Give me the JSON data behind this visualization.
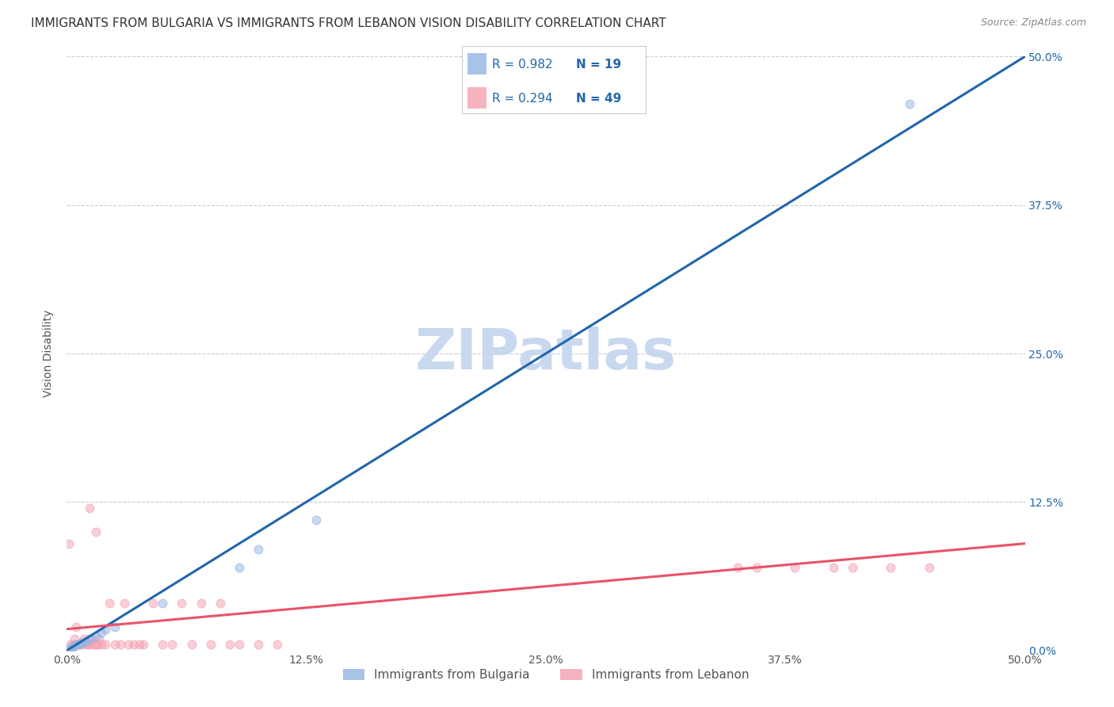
{
  "title": "IMMIGRANTS FROM BULGARIA VS IMMIGRANTS FROM LEBANON VISION DISABILITY CORRELATION CHART",
  "source": "Source: ZipAtlas.com",
  "ylabel": "Vision Disability",
  "xlabel": "",
  "xlim": [
    0.0,
    0.5
  ],
  "ylim": [
    0.0,
    0.5
  ],
  "xtick_labels": [
    "0.0%",
    "12.5%",
    "25.0%",
    "37.5%",
    "50.0%"
  ],
  "xtick_vals": [
    0.0,
    0.125,
    0.25,
    0.375,
    0.5
  ],
  "ytick_vals": [
    0.0,
    0.125,
    0.25,
    0.375,
    0.5
  ],
  "right_ytick_labels": [
    "50.0%",
    "37.5%",
    "25.0%",
    "12.5%",
    "0.0%"
  ],
  "right_ytick_vals": [
    0.5,
    0.375,
    0.25,
    0.125,
    0.0
  ],
  "watermark": "ZIPatlas",
  "bulgaria_color": "#92b4e3",
  "lebanon_color": "#f4a0b0",
  "bulgaria_line_color": "#2166ac",
  "lebanon_line_color": "#e8536a",
  "legend_R_bulgaria": "R = 0.982",
  "legend_N_bulgaria": "N = 19",
  "legend_R_lebanon": "R = 0.294",
  "legend_N_lebanon": "N = 49",
  "bulgaria_scatter_x": [
    0.001,
    0.002,
    0.003,
    0.004,
    0.005,
    0.006,
    0.007,
    0.008,
    0.01,
    0.012,
    0.015,
    0.018,
    0.02,
    0.025,
    0.05,
    0.09,
    0.1,
    0.13,
    0.44
  ],
  "bulgaria_scatter_y": [
    0.001,
    0.002,
    0.003,
    0.004,
    0.005,
    0.005,
    0.006,
    0.007,
    0.008,
    0.01,
    0.012,
    0.015,
    0.018,
    0.02,
    0.04,
    0.07,
    0.085,
    0.11,
    0.46
  ],
  "lebanon_scatter_x": [
    0.001,
    0.002,
    0.003,
    0.004,
    0.005,
    0.005,
    0.006,
    0.007,
    0.008,
    0.009,
    0.01,
    0.011,
    0.012,
    0.013,
    0.014,
    0.015,
    0.016,
    0.017,
    0.018,
    0.02,
    0.022,
    0.025,
    0.028,
    0.03,
    0.032,
    0.035,
    0.038,
    0.04,
    0.045,
    0.05,
    0.055,
    0.06,
    0.065,
    0.07,
    0.075,
    0.08,
    0.085,
    0.09,
    0.1,
    0.11,
    0.012,
    0.015,
    0.35,
    0.36,
    0.38,
    0.4,
    0.41,
    0.43,
    0.45
  ],
  "lebanon_scatter_y": [
    0.09,
    0.005,
    0.005,
    0.01,
    0.005,
    0.02,
    0.005,
    0.005,
    0.005,
    0.01,
    0.005,
    0.005,
    0.005,
    0.01,
    0.005,
    0.005,
    0.005,
    0.01,
    0.005,
    0.005,
    0.04,
    0.005,
    0.005,
    0.04,
    0.005,
    0.005,
    0.005,
    0.005,
    0.04,
    0.005,
    0.005,
    0.04,
    0.005,
    0.04,
    0.005,
    0.04,
    0.005,
    0.005,
    0.005,
    0.005,
    0.12,
    0.1,
    0.07,
    0.07,
    0.07,
    0.07,
    0.07,
    0.07,
    0.07
  ],
  "title_fontsize": 11,
  "source_fontsize": 9,
  "axis_label_fontsize": 10,
  "tick_fontsize": 10,
  "legend_fontsize": 12,
  "watermark_fontsize": 52,
  "watermark_color": "#c8d8ef",
  "background_color": "#ffffff",
  "scatter_size": 60,
  "scatter_alpha": 0.5,
  "line_width": 2.2
}
